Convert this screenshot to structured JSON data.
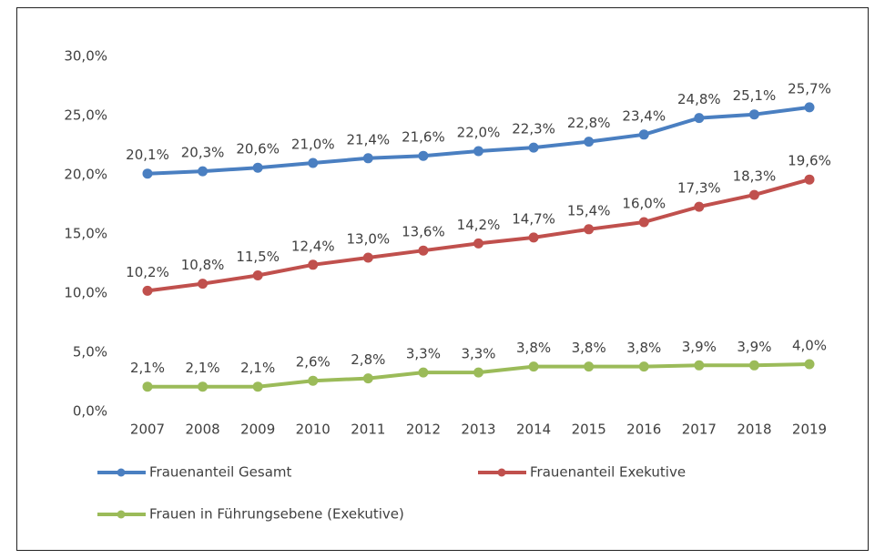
{
  "chart_data": {
    "type": "line",
    "categories": [
      "2007",
      "2008",
      "2009",
      "2010",
      "2011",
      "2012",
      "2013",
      "2014",
      "2015",
      "2016",
      "2017",
      "2018",
      "2019"
    ],
    "series": [
      {
        "name": "Frauenanteil Gesamt",
        "color": "#4a7fc1",
        "values": [
          20.1,
          20.3,
          20.6,
          21.0,
          21.4,
          21.6,
          22.0,
          22.3,
          22.8,
          23.4,
          24.8,
          25.1,
          25.7
        ],
        "value_labels": [
          "20,1%",
          "20,3%",
          "20,6%",
          "21,0%",
          "21,4%",
          "21,6%",
          "22,0%",
          "22,3%",
          "22,8%",
          "23,4%",
          "24,8%",
          "25,1%",
          "25,7%"
        ]
      },
      {
        "name": "Frauenanteil Exekutive",
        "color": "#c0504d",
        "values": [
          10.2,
          10.8,
          11.5,
          12.4,
          13.0,
          13.6,
          14.2,
          14.7,
          15.4,
          16.0,
          17.3,
          18.3,
          19.6
        ],
        "value_labels": [
          "10,2%",
          "10,8%",
          "11,5%",
          "12,4%",
          "13,0%",
          "13,6%",
          "14,2%",
          "14,7%",
          "15,4%",
          "16,0%",
          "17,3%",
          "18,3%",
          "19,6%"
        ]
      },
      {
        "name": "Frauen in Führungsebene (Exekutive)",
        "color": "#9bbb59",
        "values": [
          2.1,
          2.1,
          2.1,
          2.6,
          2.8,
          3.3,
          3.3,
          3.8,
          3.8,
          3.8,
          3.9,
          3.9,
          4.0
        ],
        "value_labels": [
          "2,1%",
          "2,1%",
          "2,1%",
          "2,6%",
          "2,8%",
          "3,3%",
          "3,3%",
          "3,8%",
          "3,8%",
          "3,8%",
          "3,9%",
          "3,9%",
          "4,0%"
        ]
      }
    ],
    "ylim": [
      0,
      30
    ],
    "yticks": [
      {
        "value": 0,
        "label": "0,0%"
      },
      {
        "value": 5,
        "label": "5,0%"
      },
      {
        "value": 10,
        "label": "10,0%"
      },
      {
        "value": 15,
        "label": "15,0%"
      },
      {
        "value": 20,
        "label": "20,0%"
      },
      {
        "value": 25,
        "label": "25,0%"
      },
      {
        "value": 30,
        "label": "30,0%"
      }
    ],
    "grid": false,
    "legend": "bottom"
  }
}
